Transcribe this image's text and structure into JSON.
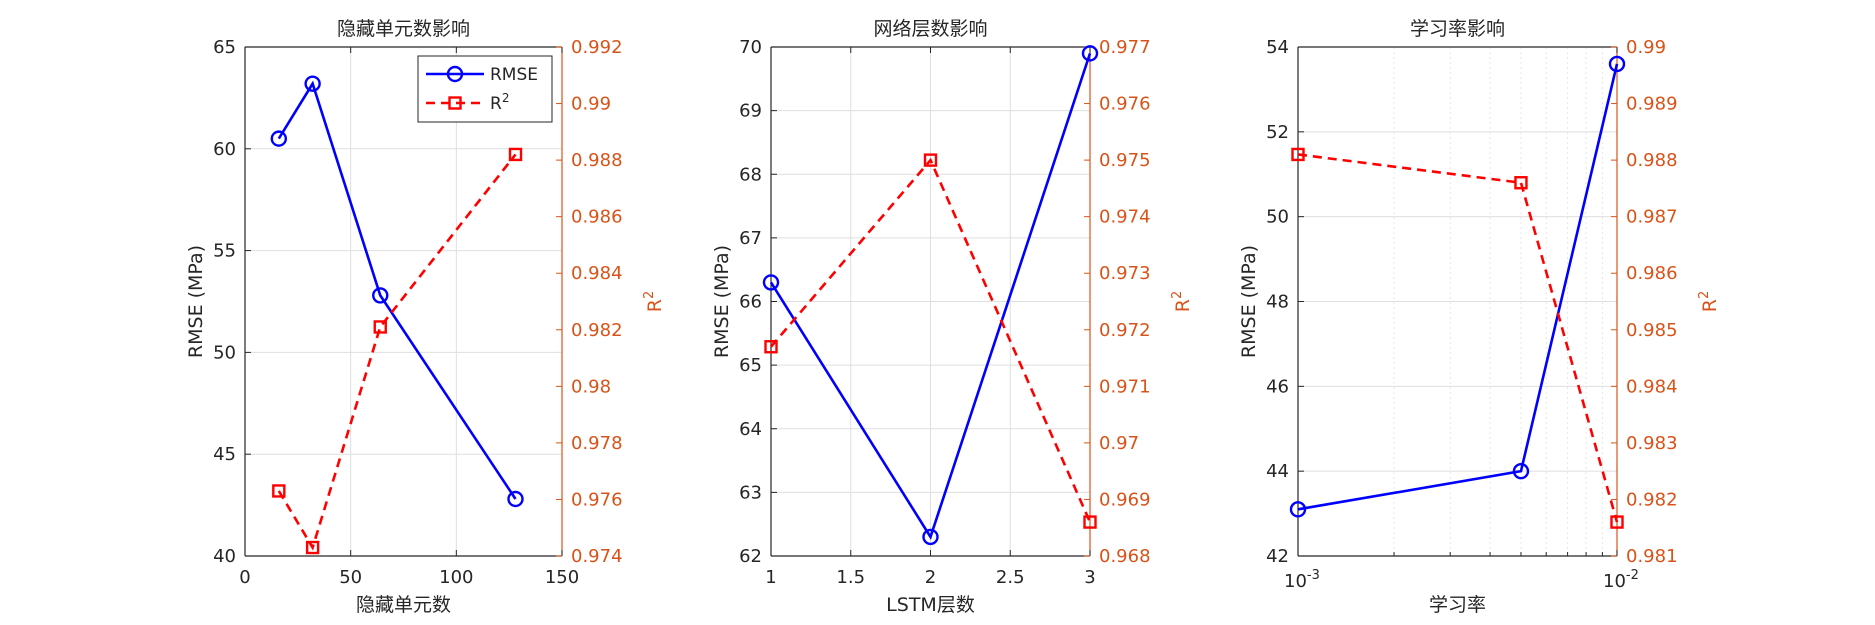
{
  "colors": {
    "rmse": "#0000ff",
    "r2": "#ff0000",
    "right_axis": "#d95319",
    "axis": "#262626",
    "grid": "#dfdfdf",
    "background": "#ffffff"
  },
  "legend": {
    "rmse_label": "RMSE",
    "r2_label_base": "R",
    "r2_label_sup": "2",
    "location": "top-right of first panel"
  },
  "chart_data": [
    {
      "type": "line",
      "dual_axis": true,
      "title": "隐藏单元数影响",
      "xlabel": "隐藏单元数",
      "ylabel": "RMSE (MPa)",
      "y2label_base": "R",
      "y2label_sup": "2",
      "xscale": "linear",
      "xlim": [
        0,
        150
      ],
      "xticks": [
        0,
        50,
        100,
        150
      ],
      "xtick_labels": [
        "0",
        "50",
        "100",
        "150"
      ],
      "ylim": [
        40,
        65
      ],
      "yticks": [
        40,
        45,
        50,
        55,
        60,
        65
      ],
      "ytick_labels": [
        "40",
        "45",
        "50",
        "55",
        "60",
        "65"
      ],
      "y2lim": [
        0.974,
        0.992
      ],
      "y2ticks": [
        0.974,
        0.976,
        0.978,
        0.98,
        0.982,
        0.984,
        0.986,
        0.988,
        0.99,
        0.992
      ],
      "y2tick_labels": [
        "0.974",
        "0.976",
        "0.978",
        "0.98",
        "0.982",
        "0.984",
        "0.986",
        "0.988",
        "0.99",
        "0.992"
      ],
      "grid": true,
      "x": [
        16,
        32,
        64,
        128
      ],
      "series": [
        {
          "name": "RMSE",
          "axis": "left",
          "marker": "circle",
          "style": "solid",
          "values": [
            60.5,
            63.2,
            52.8,
            42.8
          ]
        },
        {
          "name": "R2",
          "axis": "right",
          "marker": "square",
          "style": "dashed",
          "values": [
            0.9763,
            0.9743,
            0.9821,
            0.9882
          ]
        }
      ]
    },
    {
      "type": "line",
      "dual_axis": true,
      "title": "网络层数影响",
      "xlabel": "LSTM层数",
      "ylabel": "RMSE (MPa)",
      "y2label_base": "R",
      "y2label_sup": "2",
      "xscale": "linear",
      "xlim": [
        1,
        3
      ],
      "xticks": [
        1,
        1.5,
        2,
        2.5,
        3
      ],
      "xtick_labels": [
        "1",
        "1.5",
        "2",
        "2.5",
        "3"
      ],
      "ylim": [
        62,
        70
      ],
      "yticks": [
        62,
        63,
        64,
        65,
        66,
        67,
        68,
        69,
        70
      ],
      "ytick_labels": [
        "62",
        "63",
        "64",
        "65",
        "66",
        "67",
        "68",
        "69",
        "70"
      ],
      "y2lim": [
        0.968,
        0.977
      ],
      "y2ticks": [
        0.968,
        0.969,
        0.97,
        0.971,
        0.972,
        0.973,
        0.974,
        0.975,
        0.976,
        0.977
      ],
      "y2tick_labels": [
        "0.968",
        "0.969",
        "0.97",
        "0.971",
        "0.972",
        "0.973",
        "0.974",
        "0.975",
        "0.976",
        "0.977"
      ],
      "grid": true,
      "x": [
        1,
        2,
        3
      ],
      "series": [
        {
          "name": "RMSE",
          "axis": "left",
          "marker": "circle",
          "style": "solid",
          "values": [
            66.3,
            62.3,
            69.9
          ]
        },
        {
          "name": "R2",
          "axis": "right",
          "marker": "square",
          "style": "dashed",
          "values": [
            0.9717,
            0.975,
            0.9686
          ]
        }
      ]
    },
    {
      "type": "line",
      "dual_axis": true,
      "title": "学习率影响",
      "xlabel": "学习率",
      "ylabel": "RMSE (MPa)",
      "y2label_base": "R",
      "y2label_sup": "2",
      "xscale": "log",
      "xlim": [
        0.001,
        0.01
      ],
      "xticks": [
        0.001,
        0.01
      ],
      "xtick_labels": [
        {
          "base": "10",
          "exp": "-3"
        },
        {
          "base": "10",
          "exp": "-2"
        }
      ],
      "ylim": [
        42,
        54
      ],
      "yticks": [
        42,
        44,
        46,
        48,
        50,
        52,
        54
      ],
      "ytick_labels": [
        "42",
        "44",
        "46",
        "48",
        "50",
        "52",
        "54"
      ],
      "y2lim": [
        0.981,
        0.99
      ],
      "y2ticks": [
        0.981,
        0.982,
        0.983,
        0.984,
        0.985,
        0.986,
        0.987,
        0.988,
        0.989,
        0.99
      ],
      "y2tick_labels": [
        "0.981",
        "0.982",
        "0.983",
        "0.984",
        "0.985",
        "0.986",
        "0.987",
        "0.988",
        "0.989",
        "0.99"
      ],
      "grid": true,
      "x": [
        0.001,
        0.005,
        0.01
      ],
      "series": [
        {
          "name": "RMSE",
          "axis": "left",
          "marker": "circle",
          "style": "solid",
          "values": [
            43.1,
            44.0,
            53.6
          ]
        },
        {
          "name": "R2",
          "axis": "right",
          "marker": "square",
          "style": "dashed",
          "values": [
            0.9881,
            0.9876,
            0.9816
          ]
        }
      ]
    }
  ]
}
